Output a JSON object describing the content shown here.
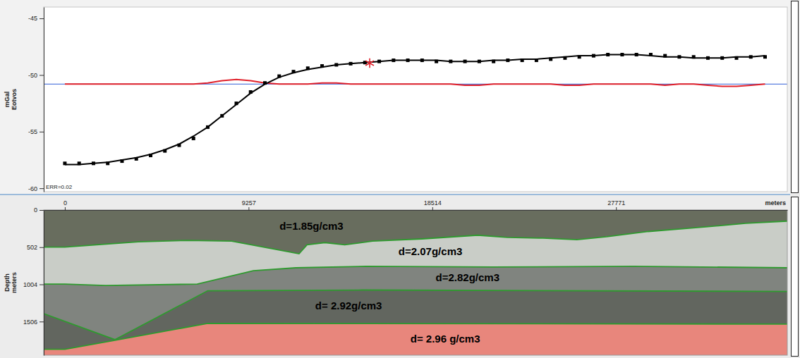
{
  "chart_data": [
    {
      "type": "line",
      "y_label": [
        "mGal",
        "Eotvos"
      ],
      "annotation": "ERR=0.02",
      "xlim": [
        -1064,
        36400
      ],
      "ylim": [
        -60.3,
        -44
      ],
      "yticks": [
        -60,
        -55,
        -50,
        -45
      ],
      "tick_labels": "y",
      "x": [
        0,
        720,
        1440,
        2160,
        2880,
        3600,
        4320,
        5040,
        5760,
        6480,
        7200,
        7920,
        8640,
        9360,
        10080,
        10800,
        11520,
        12240,
        12960,
        13680,
        14400,
        15120,
        15840,
        16560,
        17280,
        18000,
        18720,
        19440,
        20160,
        20880,
        21600,
        22320,
        23040,
        23760,
        24480,
        25200,
        25920,
        26640,
        27360,
        28080,
        28800,
        29520,
        30240,
        30960,
        31680,
        32400,
        33120,
        33840,
        34560,
        35280
      ],
      "series": [
        {
          "color": "#000000",
          "marker": "square",
          "line_style": "none",
          "values": [
            -57.8,
            -57.8,
            -57.8,
            -57.8,
            -57.6,
            -57.4,
            -57.1,
            -56.7,
            -56.2,
            -55.6,
            -54.6,
            -53.6,
            -52.5,
            -51.5,
            -50.7,
            -50.1,
            -49.7,
            -49.4,
            -49.2,
            -49.1,
            -49.0,
            -48.9,
            -48.8,
            -48.7,
            -48.7,
            -48.7,
            -48.8,
            -48.8,
            -48.8,
            -48.8,
            -48.8,
            -48.7,
            -48.7,
            -48.7,
            -48.6,
            -48.5,
            -48.4,
            -48.3,
            -48.2,
            -48.2,
            -48.2,
            -48.2,
            -48.3,
            -48.4,
            -48.4,
            -48.5,
            -48.5,
            -48.5,
            -48.4,
            -48.4
          ]
        },
        {
          "color": "#000000",
          "marker": "none",
          "line_style": "solid",
          "values": [
            -57.9,
            -57.9,
            -57.8,
            -57.7,
            -57.5,
            -57.3,
            -57.0,
            -56.6,
            -56.1,
            -55.4,
            -54.6,
            -53.6,
            -52.6,
            -51.6,
            -50.8,
            -50.2,
            -49.8,
            -49.5,
            -49.3,
            -49.1,
            -49.0,
            -48.9,
            -48.8,
            -48.7,
            -48.7,
            -48.7,
            -48.7,
            -48.8,
            -48.8,
            -48.8,
            -48.7,
            -48.7,
            -48.6,
            -48.6,
            -48.5,
            -48.4,
            -48.3,
            -48.3,
            -48.2,
            -48.2,
            -48.2,
            -48.3,
            -48.4,
            -48.4,
            -48.5,
            -48.5,
            -48.5,
            -48.4,
            -48.4,
            -48.3
          ]
        },
        {
          "color": "#e0202a",
          "marker": "none",
          "line_style": "solid",
          "values": [
            -50.8,
            -50.8,
            -50.8,
            -50.8,
            -50.8,
            -50.8,
            -50.8,
            -50.8,
            -50.8,
            -50.8,
            -50.7,
            -50.5,
            -50.4,
            -50.5,
            -50.7,
            -50.8,
            -50.8,
            -50.8,
            -50.7,
            -50.7,
            -50.8,
            -50.8,
            -50.8,
            -50.8,
            -50.8,
            -50.8,
            -50.8,
            -50.8,
            -50.9,
            -50.9,
            -50.8,
            -50.8,
            -50.8,
            -50.8,
            -50.8,
            -50.9,
            -50.9,
            -50.8,
            -50.8,
            -50.8,
            -50.8,
            -50.8,
            -50.9,
            -50.8,
            -50.8,
            -50.9,
            -51.0,
            -51.0,
            -50.9,
            -50.8
          ]
        }
      ],
      "baseline": {
        "value": -50.8,
        "color": "#5b7fe0"
      },
      "selected_point": {
        "x": 15360,
        "y": -48.95,
        "color": "#e0202a",
        "marker": "asterisk"
      }
    },
    {
      "type": "cross-section",
      "x_label": "meters",
      "y_label": [
        "Depth",
        "meters"
      ],
      "xlim": [
        -1064,
        36400
      ],
      "ylim": [
        0,
        1960
      ],
      "xticks": [
        0,
        9257,
        18514,
        27771
      ],
      "yticks": [
        0,
        502,
        1004,
        1506
      ],
      "boundary_color": "#2f9a2f",
      "boundaries": [
        {
          "x": [
            -1064,
            0,
            3700,
            6200,
            8400,
            11800,
            12200,
            13100,
            14100,
            15500,
            18000,
            20800,
            22300,
            24100,
            25800,
            27300,
            29400,
            30800,
            32200,
            34300,
            36400
          ],
          "depth": [
            500,
            500,
            430,
            410,
            420,
            590,
            470,
            440,
            470,
            420,
            390,
            340,
            370,
            380,
            400,
            360,
            290,
            260,
            230,
            180,
            150
          ]
        },
        {
          "x": [
            -1064,
            0,
            2060,
            6670,
            9500,
            11640,
            15180,
            21570,
            28660,
            36400
          ],
          "depth": [
            1000,
            1000,
            1020,
            1000,
            820,
            780,
            760,
            770,
            760,
            780
          ]
        },
        {
          "x": [
            -1064,
            2520,
            7200,
            15000,
            36400
          ],
          "depth": [
            1400,
            1750,
            1090,
            1080,
            1100
          ]
        },
        {
          "x": [
            -1064,
            0,
            2520,
            7200,
            36400
          ],
          "depth": [
            1880,
            1880,
            1760,
            1530,
            1540
          ]
        }
      ],
      "layers": [
        {
          "label": "d=1.85g/cm3",
          "color": "#686d5e"
        },
        {
          "label": "d=2.07g/cm3",
          "color": "#c9cdc7"
        },
        {
          "label": "d=2.82g/cm3",
          "color": "#80847f"
        },
        {
          "label": "d= 2.92g/cm3",
          "color": "#62665f"
        },
        {
          "label": "d= 2.96 g/cm3",
          "color": "#e8867c"
        }
      ]
    }
  ]
}
